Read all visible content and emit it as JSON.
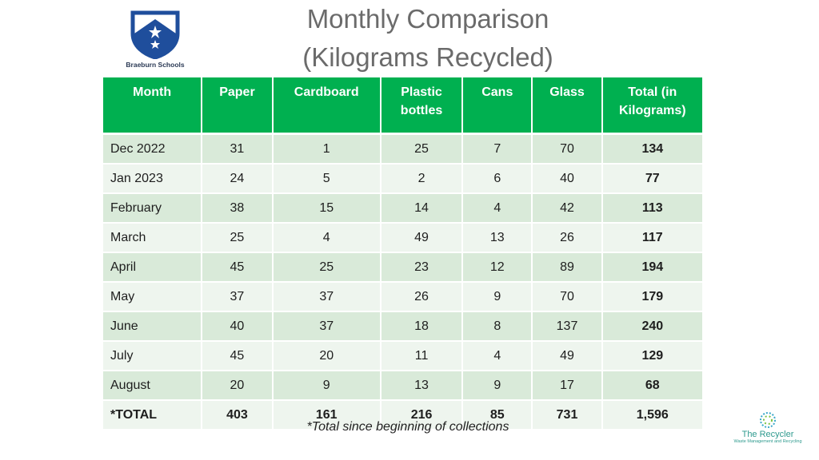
{
  "logo": {
    "name": "Braeburn Schools"
  },
  "title": {
    "line1": "Monthly Comparison",
    "line2": "(Kilograms Recycled)"
  },
  "table": {
    "headers": [
      "Month",
      "Paper",
      "Cardboard",
      "Plastic bottles",
      "Cans",
      "Glass",
      "Total (in Kilograms)"
    ],
    "rows": [
      [
        "Dec 2022",
        "31",
        "1",
        "25",
        "7",
        "70",
        "134"
      ],
      [
        "Jan 2023",
        "24",
        "5",
        "2",
        "6",
        "40",
        "77"
      ],
      [
        "February",
        "38",
        "15",
        "14",
        "4",
        "42",
        "113"
      ],
      [
        "March",
        "25",
        "4",
        "49",
        "13",
        "26",
        "117"
      ],
      [
        "April",
        "45",
        "25",
        "23",
        "12",
        "89",
        "194"
      ],
      [
        "May",
        "37",
        "37",
        "26",
        "9",
        "70",
        "179"
      ],
      [
        "June",
        "40",
        "37",
        "18",
        "8",
        "137",
        "240"
      ],
      [
        "July",
        "45",
        "20",
        "11",
        "4",
        "49",
        "129"
      ],
      [
        "August",
        "20",
        "9",
        "13",
        "9",
        "17",
        "68"
      ],
      [
        "*TOTAL",
        "403",
        "161",
        "216",
        "85",
        "731",
        "1,596"
      ]
    ]
  },
  "footnote": "*Total since beginning of collections",
  "brand": {
    "name": "The Recycler",
    "tagline": "Waste Management and Recycling"
  },
  "colors": {
    "header_green": "#00b050",
    "row_dark": "#d9ead9",
    "row_light": "#eef5ee",
    "shield_blue": "#1f4e9c"
  }
}
